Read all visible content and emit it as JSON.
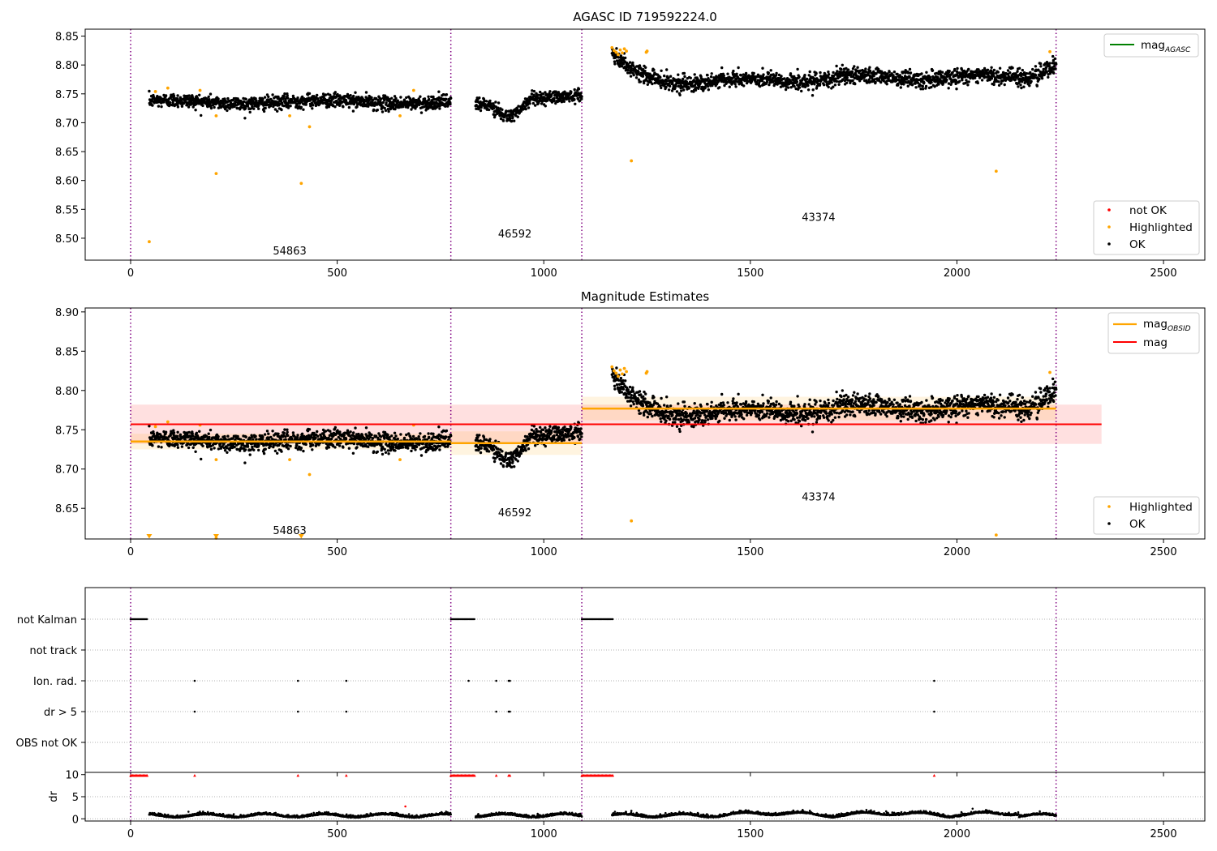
{
  "chart_data": [
    {
      "type": "scatter",
      "title": "AGASC ID 719592224.0",
      "xlim": [
        -110,
        2600
      ],
      "ylim": [
        8.462,
        8.862
      ],
      "xticks": [
        0,
        500,
        1000,
        1500,
        2000,
        2500
      ],
      "yticks": [
        8.5,
        8.55,
        8.6,
        8.65,
        8.7,
        8.75,
        8.8,
        8.85
      ],
      "ytick_labels": [
        "8.50",
        "8.55",
        "8.60",
        "8.65",
        "8.70",
        "8.75",
        "8.80",
        "8.85"
      ],
      "grid": false,
      "obs_boundaries": [
        0,
        775,
        1092,
        2240
      ],
      "obs_labels": [
        {
          "text": "54863",
          "x": 385,
          "y": 8.472
        },
        {
          "text": "46592",
          "x": 930,
          "y": 8.501
        },
        {
          "text": "43374",
          "x": 1665,
          "y": 8.53
        }
      ],
      "segments": [
        {
          "start": 45,
          "end": 775,
          "base": 8.736,
          "noise": 0.006,
          "wiggle": 0.003
        },
        {
          "start": 835,
          "end": 1092,
          "base": 8.735,
          "noise": 0.006,
          "dip_center": 915,
          "dip_depth": 0.028,
          "dip_width": 40
        },
        {
          "start": 1165,
          "end": 2240,
          "base": 8.775,
          "noise": 0.007,
          "start_bump": 0.04,
          "end_bump": 0.032
        }
      ],
      "highlighted_points": [
        {
          "x": 45,
          "y": 8.494
        },
        {
          "x": 60,
          "y": 8.754
        },
        {
          "x": 90,
          "y": 8.76
        },
        {
          "x": 168,
          "y": 8.756
        },
        {
          "x": 207,
          "y": 8.712
        },
        {
          "x": 207,
          "y": 8.612
        },
        {
          "x": 385,
          "y": 8.712
        },
        {
          "x": 413,
          "y": 8.595
        },
        {
          "x": 433,
          "y": 8.693
        },
        {
          "x": 652,
          "y": 8.712
        },
        {
          "x": 685,
          "y": 8.756
        },
        {
          "x": 1165,
          "y": 8.83
        },
        {
          "x": 1170,
          "y": 8.825
        },
        {
          "x": 1175,
          "y": 8.822
        },
        {
          "x": 1180,
          "y": 8.818
        },
        {
          "x": 1185,
          "y": 8.826
        },
        {
          "x": 1190,
          "y": 8.821
        },
        {
          "x": 1195,
          "y": 8.828
        },
        {
          "x": 1200,
          "y": 8.824
        },
        {
          "x": 1212,
          "y": 8.634
        },
        {
          "x": 1248,
          "y": 8.822
        },
        {
          "x": 1250,
          "y": 8.824
        },
        {
          "x": 2095,
          "y": 8.616
        },
        {
          "x": 2225,
          "y": 8.823
        }
      ],
      "legend_lines": [
        {
          "label": "mag",
          "subscript": "AGASC",
          "color": "#008000"
        }
      ],
      "legend_markers": [
        {
          "label": "not OK",
          "color": "#ff0000"
        },
        {
          "label": "Highlighted",
          "color": "#ffa500"
        },
        {
          "label": "OK",
          "color": "#000000"
        }
      ]
    },
    {
      "type": "scatter",
      "title": "Magnitude Estimates",
      "xlim": [
        -110,
        2600
      ],
      "ylim": [
        8.611,
        8.905
      ],
      "xticks": [
        0,
        500,
        1000,
        1500,
        2000,
        2500
      ],
      "yticks": [
        8.65,
        8.7,
        8.75,
        8.8,
        8.85,
        8.9
      ],
      "ytick_labels": [
        "8.65",
        "8.70",
        "8.75",
        "8.80",
        "8.85",
        "8.90"
      ],
      "grid": false,
      "obs_boundaries": [
        0,
        775,
        1092,
        2240
      ],
      "obs_labels": [
        {
          "text": "54863",
          "x": 385,
          "y": 8.617
        },
        {
          "text": "46592",
          "x": 930,
          "y": 8.64
        },
        {
          "text": "43374",
          "x": 1665,
          "y": 8.66
        }
      ],
      "mag_line": {
        "x0": 0,
        "x1": 2350,
        "value": 8.757,
        "band": [
          8.732,
          8.782
        ],
        "color": "#ff0000"
      },
      "mag_obsid": [
        {
          "x0": 0,
          "x1": 775,
          "value": 8.735,
          "band": [
            8.725,
            8.745
          ]
        },
        {
          "x0": 775,
          "x1": 1092,
          "value": 8.733,
          "band": [
            8.718,
            8.748
          ]
        },
        {
          "x0": 1092,
          "x1": 2240,
          "value": 8.777,
          "band": [
            8.762,
            8.792
          ]
        }
      ],
      "clipped_markers": [
        45,
        207,
        413
      ],
      "legend_lines": [
        {
          "label": "mag",
          "subscript": "OBSID",
          "color": "#ffa500"
        },
        {
          "label": "mag",
          "subscript": "",
          "color": "#ff0000"
        }
      ],
      "legend_markers": [
        {
          "label": "Highlighted",
          "color": "#ffa500"
        },
        {
          "label": "OK",
          "color": "#000000"
        }
      ]
    },
    {
      "type": "scatter",
      "title": "",
      "xlim": [
        -110,
        2600
      ],
      "xticks": [
        0,
        500,
        1000,
        1500,
        2000,
        2500
      ],
      "flag_rows": [
        "not Kalman",
        "not track",
        "Ion. rad.",
        "dr > 5",
        "OBS not OK"
      ],
      "flags": {
        "not Kalman": [
          [
            0,
            40
          ],
          [
            775,
            833
          ],
          [
            1092,
            1168
          ]
        ],
        "not track": [],
        "Ion. rad.": [
          155,
          405,
          522,
          818,
          885,
          915,
          918,
          1945
        ],
        "dr > 5": [
          155,
          405,
          522,
          885,
          915,
          918,
          1945
        ],
        "OBS not OK": []
      }
    },
    {
      "type": "scatter",
      "title": "",
      "ylabel": "dr",
      "xlim": [
        -110,
        2600
      ],
      "ylim": [
        -0.5,
        10.5
      ],
      "xticks": [
        0,
        500,
        1000,
        1500,
        2000,
        2500
      ],
      "yticks": [
        0,
        5,
        10
      ],
      "ytick_labels": [
        "0",
        "5",
        "10"
      ],
      "clipped_red": [
        [
          0,
          40
        ],
        [
          775,
          833
        ],
        [
          1092,
          1168
        ],
        155,
        405,
        522,
        885,
        915,
        918,
        1945
      ],
      "outliers": [
        {
          "x": 665,
          "y": 2.8
        },
        {
          "x": 140,
          "y": 1.6
        },
        {
          "x": 1212,
          "y": 1.8
        }
      ]
    }
  ]
}
